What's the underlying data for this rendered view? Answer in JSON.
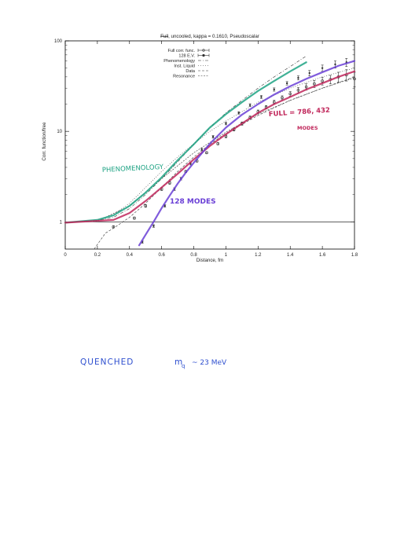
{
  "chart_data": {
    "type": "line",
    "title": "Full, uncooled, kappa = 0.1610, Pseudoscalar",
    "title_struck_word": "Full",
    "title_rest": ", uncooled, kappa = 0.1610, Pseudoscalar",
    "xlabel": "Distance, fm",
    "ylabel": "Corr. function/free",
    "xlim": [
      0,
      1.8
    ],
    "ylim": [
      0.5,
      100
    ],
    "yscale": "log",
    "legend_position": "top-center",
    "x_ticks": [
      0,
      0.2,
      0.4,
      0.6,
      0.8,
      1,
      1.2,
      1.4,
      1.6,
      1.8
    ],
    "x_tick_labels": [
      "0",
      "0.2",
      "0.4",
      "0.6",
      "0.8",
      "1",
      "1.2",
      "1.4",
      "1.6",
      "1.8"
    ],
    "y_ticks": [
      1,
      10,
      100
    ],
    "y_tick_labels": [
      "1",
      "10",
      "100"
    ],
    "series": [
      {
        "name": "Full corr. func.",
        "style": "points-errorbars",
        "x": [
          0.3,
          0.43,
          0.5,
          0.6,
          0.65,
          0.75,
          0.82,
          0.88,
          0.95,
          1.0,
          1.05,
          1.1,
          1.15,
          1.2,
          1.25,
          1.3,
          1.35,
          1.4,
          1.45,
          1.5,
          1.55,
          1.6,
          1.65,
          1.7,
          1.75,
          1.8
        ],
        "y": [
          0.88,
          1.1,
          1.5,
          2.3,
          2.7,
          3.6,
          4.7,
          5.8,
          7.3,
          8.8,
          10.5,
          12.2,
          14.2,
          16.5,
          18.5,
          21,
          23.5,
          26,
          28.5,
          31,
          33.5,
          36,
          37.5,
          40,
          42,
          38
        ],
        "err": [
          0.02,
          0.03,
          0.05,
          0.08,
          0.1,
          0.1,
          0.12,
          0.15,
          0.2,
          0.3,
          0.4,
          0.5,
          0.6,
          0.7,
          0.8,
          1,
          1.2,
          1.5,
          2,
          2.5,
          3,
          3.5,
          4,
          5,
          6,
          7
        ]
      },
      {
        "name": "128 E.V.",
        "style": "points-errorbars",
        "x": [
          0.48,
          0.55,
          0.62,
          0.68,
          0.72,
          0.78,
          0.85,
          0.92,
          1.0,
          1.08,
          1.15,
          1.22,
          1.3,
          1.38,
          1.45,
          1.52,
          1.6,
          1.68,
          1.75
        ],
        "y": [
          0.6,
          0.9,
          1.5,
          2.3,
          3.0,
          4.4,
          6.3,
          8.7,
          12.2,
          16,
          19.5,
          24,
          29,
          34,
          39,
          44,
          50,
          55,
          58
        ],
        "err": [
          0.02,
          0.03,
          0.05,
          0.08,
          0.1,
          0.15,
          0.2,
          0.3,
          0.4,
          0.5,
          0.7,
          0.9,
          1.2,
          1.5,
          2,
          3,
          4,
          5,
          6
        ]
      },
      {
        "name": "Phenomenology",
        "style": "dash-dot",
        "x": [
          0,
          0.2,
          0.3,
          0.4,
          0.5,
          0.6,
          0.7,
          0.8,
          0.9,
          1.0,
          1.1,
          1.2,
          1.3,
          1.4,
          1.5
        ],
        "y": [
          0.98,
          1.03,
          1.12,
          1.4,
          2.0,
          3.0,
          4.6,
          7.2,
          11,
          16,
          22,
          30,
          40,
          52,
          68
        ]
      },
      {
        "name": "Inst. Liquid",
        "style": "dotted",
        "x": [
          0,
          0.2,
          0.3,
          0.4,
          0.5,
          0.6,
          0.7,
          0.8,
          0.9,
          1.0,
          1.2,
          1.4,
          1.6,
          1.8
        ],
        "y": [
          0.98,
          1.04,
          1.2,
          1.6,
          2.4,
          3.6,
          5.2,
          7.3,
          10,
          13,
          21,
          30,
          40,
          50
        ]
      },
      {
        "name": "Data",
        "style": "dashed",
        "x": [
          0.18,
          0.25,
          0.3,
          0.4,
          0.5,
          0.6,
          0.7,
          0.8,
          0.9,
          1.0,
          1.2,
          1.4,
          1.6,
          1.8
        ],
        "y": [
          0.5,
          0.75,
          0.85,
          1.12,
          1.6,
          2.4,
          3.6,
          5.2,
          7.2,
          9.5,
          15,
          22,
          30,
          40
        ]
      },
      {
        "name": "Resonance",
        "style": "fine-dashed",
        "x": [
          0,
          0.2,
          0.4,
          0.6,
          0.8,
          1.0,
          1.2,
          1.4,
          1.6,
          1.8
        ],
        "y": [
          0.98,
          1.02,
          1.5,
          3.0,
          5.8,
          9.8,
          15.5,
          22,
          30,
          39
        ]
      }
    ],
    "hand_curves": [
      {
        "id": "phenomenology-hand-curve",
        "color": "#1fa384",
        "x": [
          0,
          0.2,
          0.3,
          0.4,
          0.5,
          0.6,
          0.7,
          0.8,
          0.9,
          1.0,
          1.1,
          1.2,
          1.3,
          1.4,
          1.5
        ],
        "y": [
          0.98,
          1.05,
          1.18,
          1.5,
          2.1,
          3.1,
          4.8,
          7.2,
          11,
          15.5,
          21,
          28,
          36,
          46,
          58
        ]
      },
      {
        "id": "full-hand-curve",
        "color": "#c0265a",
        "x": [
          0,
          0.3,
          0.4,
          0.5,
          0.6,
          0.7,
          0.8,
          0.9,
          1.0,
          1.1,
          1.2,
          1.3,
          1.4,
          1.5,
          1.6,
          1.7,
          1.8
        ],
        "y": [
          0.98,
          1.05,
          1.25,
          1.7,
          2.4,
          3.4,
          4.9,
          6.9,
          9.3,
          12.2,
          16,
          20,
          24,
          29,
          34,
          40,
          46
        ]
      },
      {
        "id": "modes-hand-curve",
        "color": "#6a3fd6",
        "x": [
          0.46,
          0.5,
          0.55,
          0.6,
          0.65,
          0.7,
          0.75,
          0.8,
          0.9,
          1.0,
          1.1,
          1.2,
          1.3,
          1.4,
          1.5,
          1.6,
          1.7,
          1.8
        ],
        "y": [
          0.55,
          0.72,
          1.0,
          1.42,
          1.95,
          2.65,
          3.5,
          4.5,
          7.3,
          11,
          15.3,
          20,
          25.5,
          31.5,
          38,
          45,
          53,
          60
        ]
      }
    ],
    "annotations": {
      "phenomenology": "PHENOMENOLOGY",
      "full_line1": "FULL = 786, 432",
      "full_line2": "MODES",
      "modes": "128 MODES",
      "quenched": "QUENCHED",
      "mass_symbol": "m",
      "mass_sub": "q",
      "mass_value": "~ 23 MeV"
    }
  }
}
